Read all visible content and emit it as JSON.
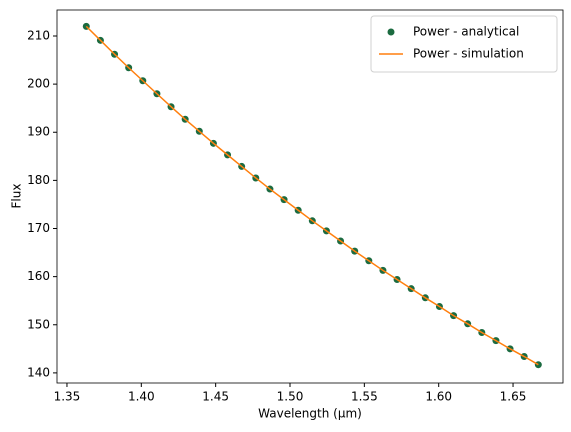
{
  "chart_data": {
    "type": "scatter-line",
    "xlabel": "Wavelength (μm)",
    "ylabel": "Flux",
    "x": [
      1.363,
      1.3725,
      1.382,
      1.3915,
      1.401,
      1.4105,
      1.42,
      1.4295,
      1.439,
      1.4485,
      1.458,
      1.4675,
      1.477,
      1.4865,
      1.496,
      1.5055,
      1.515,
      1.5245,
      1.534,
      1.5435,
      1.553,
      1.5625,
      1.572,
      1.5815,
      1.591,
      1.6005,
      1.61,
      1.6195,
      1.629,
      1.6385,
      1.648,
      1.6575,
      1.667
    ],
    "series": [
      {
        "name": "Power - analytical",
        "kind": "markers",
        "color": "#1b6b40",
        "values": [
          212.0,
          209.1,
          206.2,
          203.4,
          200.7,
          198.0,
          195.3,
          192.7,
          190.2,
          187.7,
          185.3,
          182.9,
          180.5,
          178.2,
          176.0,
          173.8,
          171.6,
          169.5,
          167.4,
          165.3,
          163.3,
          161.3,
          159.4,
          157.5,
          155.6,
          153.8,
          151.9,
          150.2,
          148.4,
          146.7,
          145.0,
          143.4,
          141.7
        ]
      },
      {
        "name": "Power - simulation",
        "kind": "line",
        "color": "#ff7f0e",
        "values": [
          212.0,
          209.1,
          206.2,
          203.4,
          200.7,
          198.0,
          195.3,
          192.7,
          190.2,
          187.7,
          185.3,
          182.9,
          180.5,
          178.2,
          176.0,
          173.8,
          171.6,
          169.5,
          167.4,
          165.3,
          163.3,
          161.3,
          159.4,
          157.5,
          155.6,
          153.8,
          151.9,
          150.2,
          148.4,
          146.7,
          145.0,
          143.4,
          141.7
        ]
      }
    ],
    "xlim": [
      1.3433,
      1.6836
    ],
    "ylim": [
      137.9,
      215.4
    ],
    "xticks": [
      1.35,
      {
        "value": 1.4,
        "label": "1.40"
      },
      1.45,
      {
        "value": 1.5,
        "label": "1.50"
      },
      1.55,
      {
        "value": 1.6,
        "label": "1.60"
      },
      1.65
    ],
    "yticks": [
      140,
      150,
      160,
      170,
      180,
      190,
      200,
      210
    ],
    "legend": "upper right",
    "grid": false
  }
}
